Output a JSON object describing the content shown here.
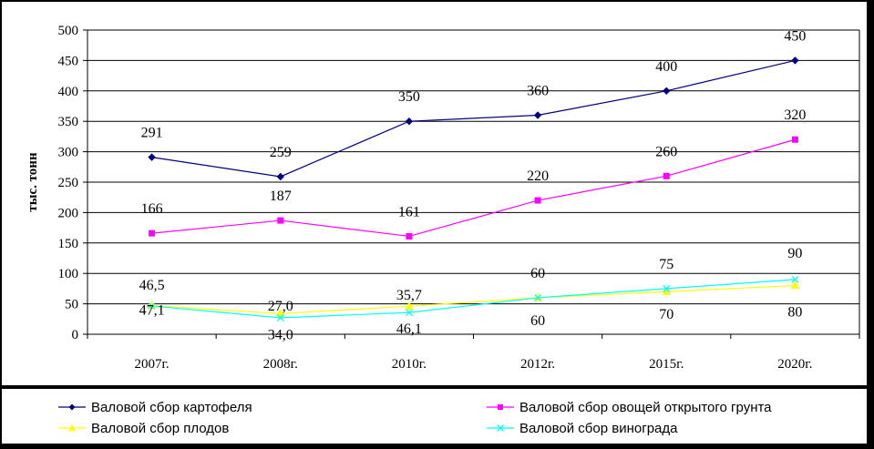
{
  "chart_data": {
    "type": "line",
    "ylabel": "тыс. тонн",
    "ylim": [
      0,
      500
    ],
    "yticks": [
      0,
      50,
      100,
      150,
      200,
      250,
      300,
      350,
      400,
      450,
      500
    ],
    "grid": true,
    "legend_placement": "bottom",
    "categories": [
      "2007г.",
      "2008г.",
      "2010г.",
      "2012г.",
      "2015г.",
      "2020г."
    ],
    "series": [
      {
        "name": "Валовой сбор картофеля",
        "color": "#000080",
        "marker": "diamond",
        "values": [
          291,
          259,
          350,
          360,
          400,
          450
        ],
        "labels": [
          "291",
          "259",
          "350",
          "360",
          "400",
          "450"
        ]
      },
      {
        "name": "Валовой сбор овощей открытого грунта",
        "color": "#FF00FF",
        "marker": "square",
        "values": [
          166,
          187,
          161,
          220,
          260,
          320
        ],
        "labels": [
          "166",
          "187",
          "161",
          "220",
          "260",
          "320"
        ]
      },
      {
        "name": "Валовой сбор плодов",
        "color": "#FFFF00",
        "marker": "triangle",
        "values": [
          47.1,
          34.0,
          46.1,
          60,
          70,
          80
        ],
        "labels": [
          "47,1",
          "34,0",
          "46,1",
          "60",
          "70",
          "80"
        ]
      },
      {
        "name": "Валовой сбор винограда",
        "color": "#00FFFF",
        "marker": "x",
        "values": [
          46.5,
          27.0,
          35.7,
          60,
          75,
          90
        ],
        "labels": [
          "46,5",
          "27,0",
          "35,7",
          "60",
          "75",
          "90"
        ]
      }
    ]
  }
}
